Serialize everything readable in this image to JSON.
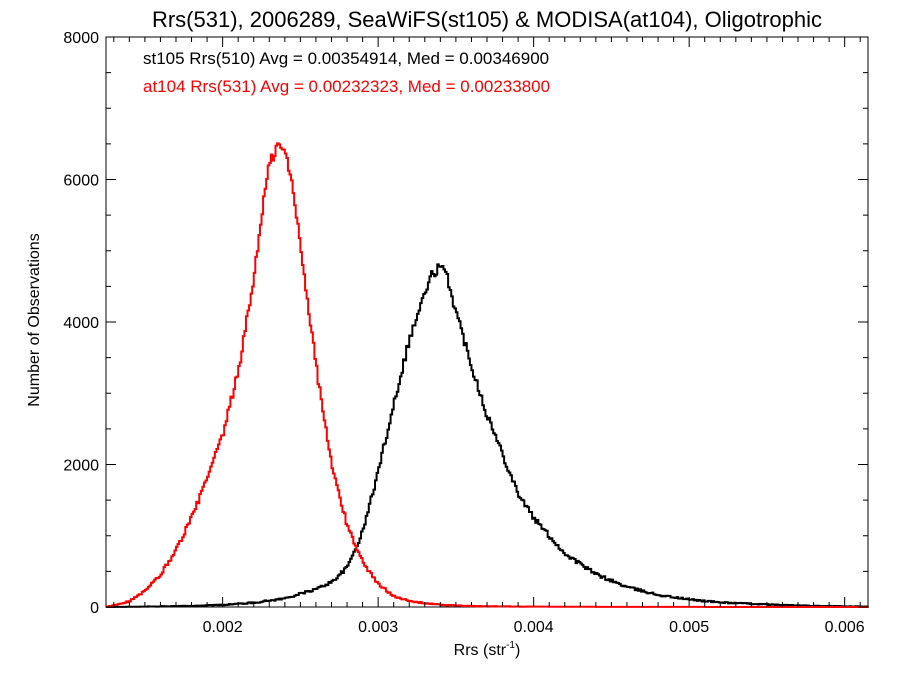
{
  "chart_data": {
    "type": "line",
    "title": "Rrs(531), 2006289, SeaWiFS(st105) & MODISA(at104), Oligotrophic",
    "xlabel_base": "Rrs (str",
    "xlabel_sup": "-1",
    "xlabel_close": ")",
    "ylabel": "Number of Observations",
    "xlim": [
      0.00125,
      0.00615
    ],
    "ylim": [
      0,
      8000
    ],
    "x_ticks": [
      0.002,
      0.003,
      0.004,
      0.005,
      0.006
    ],
    "x_tick_labels": [
      "0.002",
      "0.003",
      "0.004",
      "0.005",
      "0.006"
    ],
    "y_ticks": [
      0,
      2000,
      4000,
      6000,
      8000
    ],
    "y_tick_labels": [
      "0",
      "2000",
      "4000",
      "6000",
      "8000"
    ],
    "chart_style": "histogram-step",
    "legend_placement": "top-left",
    "series": [
      {
        "label": "st105 Rrs(510) Avg = 0.00354914, Med = 0.00346900",
        "color": "#000000",
        "x": [
          0.00125,
          0.0015,
          0.0018,
          0.002,
          0.0022,
          0.0024,
          0.0026,
          0.0027,
          0.0028,
          0.0029,
          0.003,
          0.0031,
          0.0032,
          0.0033,
          0.00335,
          0.0034,
          0.00345,
          0.0035,
          0.0036,
          0.0037,
          0.0038,
          0.0039,
          0.004,
          0.0042,
          0.0044,
          0.0046,
          0.0048,
          0.005,
          0.0052,
          0.0055,
          0.0058,
          0.00615
        ],
        "values": [
          0,
          5,
          15,
          30,
          60,
          120,
          250,
          350,
          550,
          1050,
          1900,
          2850,
          3750,
          4400,
          4680,
          4780,
          4600,
          4150,
          3400,
          2700,
          2150,
          1600,
          1250,
          750,
          460,
          280,
          170,
          105,
          65,
          35,
          15,
          5
        ]
      },
      {
        "label": "at104 Rrs(531) Avg = 0.00232323, Med = 0.00233800",
        "color": "#ff0000",
        "x": [
          0.00125,
          0.0014,
          0.0015,
          0.0016,
          0.0017,
          0.0018,
          0.0019,
          0.002,
          0.0021,
          0.0022,
          0.00225,
          0.0023,
          0.00235,
          0.0024,
          0.00245,
          0.0025,
          0.0026,
          0.0027,
          0.0028,
          0.0029,
          0.003,
          0.0031,
          0.0032,
          0.0034,
          0.0036,
          0.004,
          0.0045,
          0.005,
          0.00615
        ],
        "values": [
          0,
          80,
          220,
          450,
          800,
          1250,
          1800,
          2400,
          3300,
          4600,
          5500,
          6200,
          6470,
          6400,
          5900,
          5100,
          3400,
          2000,
          1150,
          640,
          320,
          160,
          80,
          30,
          12,
          5,
          2,
          1,
          0
        ]
      }
    ]
  }
}
